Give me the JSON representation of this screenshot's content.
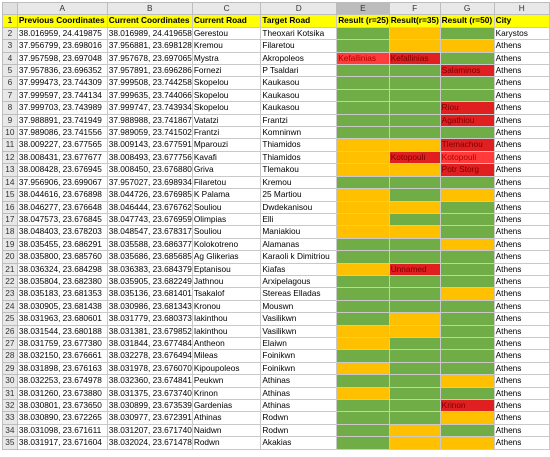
{
  "columns": [
    "A",
    "B",
    "C",
    "D",
    "E",
    "F",
    "G",
    "H"
  ],
  "header": [
    "Previous Coordinates",
    "Current Coordinates",
    "Current Road",
    "Target Road",
    "Result (r=25)",
    "Result(r=35)",
    "Result (r=50)",
    "City"
  ],
  "rows": [
    {
      "n": "2",
      "cells": [
        "38.016959, 24.419875",
        "38.016989, 24.419658",
        "Gerestou",
        "Theoxari Kotsika",
        "",
        "",
        "",
        "Karystos"
      ],
      "colors": [
        "g",
        "y",
        "g"
      ]
    },
    {
      "n": "3",
      "cells": [
        "37.956799, 23.698016",
        "37.956881, 23.698128",
        "Kremou",
        "Filaretou",
        "",
        "",
        "",
        "Athens"
      ],
      "colors": [
        "g",
        "y",
        "y"
      ]
    },
    {
      "n": "4",
      "cells": [
        "37.957598, 23.697048",
        "37.957678, 23.697065",
        "Mystra",
        "Akropoleos",
        "Kefallinias",
        "Kefallinias",
        "",
        "Athens"
      ],
      "colors": [
        "p",
        "r",
        "g"
      ]
    },
    {
      "n": "5",
      "cells": [
        "37.957836, 23.696352",
        "37.957891, 23.696286",
        "Fornezi",
        "P Tsaldari",
        "",
        "",
        "Salaminos",
        "Athens"
      ],
      "colors": [
        "g",
        "g",
        "r"
      ]
    },
    {
      "n": "6",
      "cells": [
        "37.999473, 23.744309",
        "37.999508, 23.744258",
        "Skopelou",
        "Kaukasou",
        "",
        "",
        "",
        "Athens"
      ],
      "colors": [
        "g",
        "g",
        "g"
      ]
    },
    {
      "n": "7",
      "cells": [
        "37.999597, 23.744134",
        "37.999635, 23.744066",
        "Skopelou",
        "Kaukasou",
        "",
        "",
        "",
        "Athens"
      ],
      "colors": [
        "g",
        "g",
        "g"
      ]
    },
    {
      "n": "8",
      "cells": [
        "37.999703, 23.743989",
        "37.999747, 23.743934",
        "Skopelou",
        "Kaukasou",
        "",
        "",
        "Riou",
        "Athens"
      ],
      "colors": [
        "g",
        "g",
        "r"
      ]
    },
    {
      "n": "9",
      "cells": [
        "37.988891, 23.741949",
        "37.988988, 23.741867",
        "Vatatzi",
        "Frantzi",
        "",
        "",
        "Agathiou",
        "Athens"
      ],
      "colors": [
        "g",
        "g",
        "r"
      ]
    },
    {
      "n": "10",
      "cells": [
        "37.989086, 23.741556",
        "37.989059, 23.741502",
        "Frantzi",
        "Komninwn",
        "",
        "",
        "",
        "Athens"
      ],
      "colors": [
        "g",
        "g",
        "g"
      ]
    },
    {
      "n": "11",
      "cells": [
        "38.009227, 23.677565",
        "38.009143, 23.677591",
        "Mparouzi",
        "Thiamidos",
        "",
        "",
        "Tlemachou",
        "Athens"
      ],
      "colors": [
        "y",
        "y",
        "r"
      ]
    },
    {
      "n": "12",
      "cells": [
        "38.008431, 23.677677",
        "38.008493, 23.677756",
        "Kavafi",
        "Thiamidos",
        "",
        "Kotopouli",
        "Kotopouli",
        "Athens"
      ],
      "colors": [
        "y",
        "r",
        "p"
      ]
    },
    {
      "n": "13",
      "cells": [
        "38.008428, 23.676945",
        "38.008450, 23.676880",
        "Griva",
        "Tlemakou",
        "",
        "",
        "Potr Storg",
        "Athens"
      ],
      "colors": [
        "y",
        "y",
        "r"
      ]
    },
    {
      "n": "14",
      "cells": [
        "37.956906, 23.699067",
        "37.957027, 23.698934",
        "Filaretou",
        "Kremou",
        "",
        "",
        "",
        "Athens"
      ],
      "colors": [
        "g",
        "g",
        "g"
      ]
    },
    {
      "n": "15",
      "cells": [
        "38.044616, 23.676898",
        "38.044726, 23.676985",
        "K Palama",
        "25 Martiou",
        "",
        "",
        "",
        "Athens"
      ],
      "colors": [
        "y",
        "g",
        "y"
      ]
    },
    {
      "n": "16",
      "cells": [
        "38.046277, 23.676648",
        "38.046444, 23.676762",
        "Souliou",
        "Dwdekanisou",
        "",
        "",
        "",
        "Athens"
      ],
      "colors": [
        "y",
        "y",
        "g"
      ]
    },
    {
      "n": "17",
      "cells": [
        "38.047573, 23.676845",
        "38.047743, 23.676959",
        "Olimpias",
        "Elli",
        "",
        "",
        "",
        "Athens"
      ],
      "colors": [
        "y",
        "g",
        "g"
      ]
    },
    {
      "n": "18",
      "cells": [
        "38.048403, 23.678203",
        "38.048547, 23.678317",
        "Souliou",
        "Maniakiou",
        "",
        "",
        "",
        "Athens"
      ],
      "colors": [
        "y",
        "y",
        "g"
      ]
    },
    {
      "n": "19",
      "cells": [
        "38.035455, 23.686291",
        "38.035588, 23.686377",
        "Kolokotreno",
        "Alamanas",
        "",
        "",
        "",
        "Athens"
      ],
      "colors": [
        "g",
        "g",
        "y"
      ]
    },
    {
      "n": "20",
      "cells": [
        "38.035800, 23.685760",
        "38.035686, 23.685685",
        "Ag Glikerias",
        "Karaoli k Dimitriou",
        "",
        "",
        "",
        "Athens"
      ],
      "colors": [
        "g",
        "g",
        "g"
      ]
    },
    {
      "n": "21",
      "cells": [
        "38.036324, 23.684298",
        "38.036383, 23.684379",
        "Eptanisou",
        "Kiafas",
        "",
        "Unnamed",
        "",
        "Athens"
      ],
      "colors": [
        "y",
        "r",
        "g"
      ]
    },
    {
      "n": "22",
      "cells": [
        "38.035804, 23.682380",
        "38.035905, 23.682249",
        "Jathnou",
        "Arxipelagous",
        "",
        "",
        "",
        "Athens"
      ],
      "colors": [
        "g",
        "g",
        "g"
      ]
    },
    {
      "n": "23",
      "cells": [
        "38.035183, 23.681353",
        "38.035136, 23.681401",
        "Tsakalof",
        "Stereas Elladas",
        "",
        "",
        "",
        "Athens"
      ],
      "colors": [
        "g",
        "g",
        "y"
      ]
    },
    {
      "n": "24",
      "cells": [
        "38.030905, 23.681438",
        "38.030986, 23.681343",
        "Kronou",
        "Mouswn",
        "",
        "",
        "",
        "Athens"
      ],
      "colors": [
        "g",
        "g",
        "g"
      ]
    },
    {
      "n": "25",
      "cells": [
        "38.031963, 23.680601",
        "38.031779, 23.680373",
        "Iakinthou",
        "Vasilikwn",
        "",
        "",
        "",
        "Athens"
      ],
      "colors": [
        "g",
        "y",
        "g"
      ]
    },
    {
      "n": "26",
      "cells": [
        "38.031544, 23.680188",
        "38.031381, 23.679852",
        "Iakinthou",
        "Vasilikwn",
        "",
        "",
        "",
        "Athens"
      ],
      "colors": [
        "y",
        "y",
        "g"
      ]
    },
    {
      "n": "27",
      "cells": [
        "38.031759, 23.677380",
        "38.031844, 23.677484",
        "Antheon",
        "Elaiwn",
        "",
        "",
        "",
        "Athens"
      ],
      "colors": [
        "y",
        "g",
        "g"
      ]
    },
    {
      "n": "28",
      "cells": [
        "38.032150, 23.676661",
        "38.032278, 23.676494",
        "Mileas",
        "Foinikwn",
        "",
        "",
        "",
        "Athens"
      ],
      "colors": [
        "g",
        "g",
        "g"
      ]
    },
    {
      "n": "29",
      "cells": [
        "38.031898, 23.676163",
        "38.031978, 23.676070",
        "Kipoupoleos",
        "Foinikwn",
        "",
        "",
        "",
        "Athens"
      ],
      "colors": [
        "y",
        "g",
        "g"
      ]
    },
    {
      "n": "30",
      "cells": [
        "38.032253, 23.674978",
        "38.032360, 23.674841",
        "Peukwn",
        "Athinas",
        "",
        "",
        "",
        "Athens"
      ],
      "colors": [
        "g",
        "g",
        "y"
      ]
    },
    {
      "n": "31",
      "cells": [
        "38.031260, 23.673880",
        "38.031375, 23.673740",
        "Krinon",
        "Athinas",
        "",
        "",
        "",
        "Athens"
      ],
      "colors": [
        "y",
        "g",
        "g"
      ]
    },
    {
      "n": "32",
      "cells": [
        "38.030801, 23.673650",
        "38.030899, 23.673539",
        "Gardenias",
        "Athinas",
        "",
        "",
        "Krinon",
        "Athens"
      ],
      "colors": [
        "g",
        "g",
        "r"
      ]
    },
    {
      "n": "33",
      "cells": [
        "38.030890, 23.672265",
        "38.030977, 23.672391",
        "Athinas",
        "Rodwn",
        "",
        "",
        "",
        "Athens"
      ],
      "colors": [
        "g",
        "g",
        "y"
      ]
    },
    {
      "n": "34",
      "cells": [
        "38.031098, 23.671611",
        "38.031207, 23.671740",
        "Naidwn",
        "Rodwn",
        "",
        "",
        "",
        "Athens"
      ],
      "colors": [
        "g",
        "y",
        "g"
      ]
    },
    {
      "n": "35",
      "cells": [
        "38.031917, 23.671604",
        "38.032024, 23.671478",
        "Rodwn",
        "Akakias",
        "",
        "",
        "",
        "Athens"
      ],
      "colors": [
        "g",
        "y",
        "y"
      ]
    }
  ]
}
